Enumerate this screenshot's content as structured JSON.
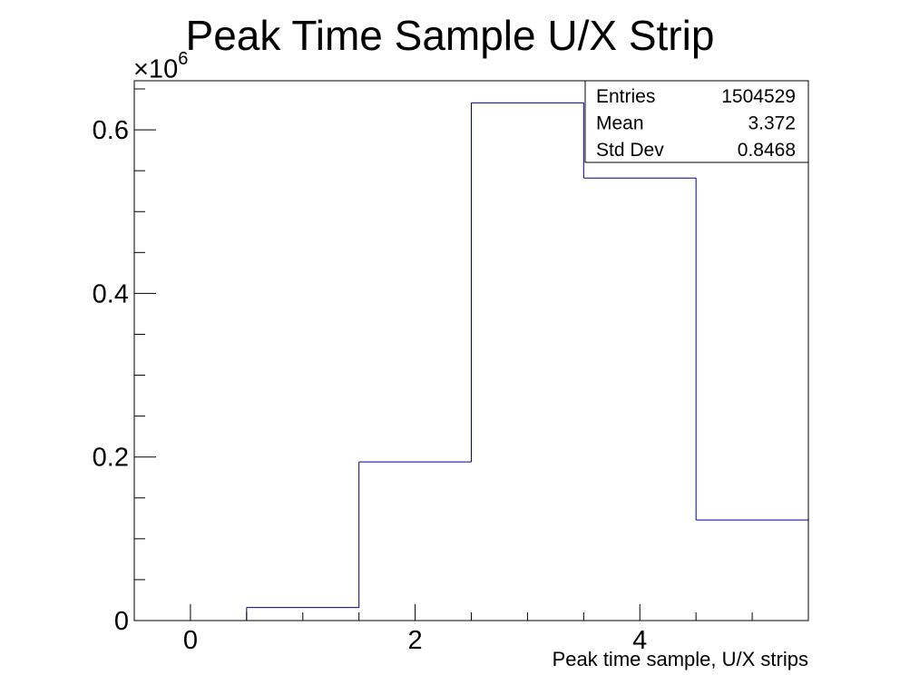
{
  "chart_data": {
    "type": "bar",
    "title": "Peak Time Sample U/X Strip",
    "xlabel": "Peak time sample, U/X strips",
    "ylabel": "",
    "y_multiplier": "×10",
    "y_multiplier_exponent": "6",
    "xlim": [
      -0.5,
      5.5
    ],
    "ylim": [
      0,
      0.66
    ],
    "x_ticks": [
      0,
      2,
      4
    ],
    "x_tick_labels": [
      "0",
      "2",
      "4"
    ],
    "y_ticks": [
      0,
      0.2,
      0.4,
      0.6
    ],
    "y_tick_labels": [
      "0",
      "0.2",
      "0.4",
      "0.6"
    ],
    "bin_edges": [
      -0.5,
      0.5,
      1.5,
      2.5,
      3.5,
      4.5,
      5.5
    ],
    "values": [
      0,
      0.016,
      0.194,
      0.633,
      0.541,
      0.123
    ],
    "line_color": "#00008b",
    "grid": false,
    "stats_box": {
      "position": "top-right",
      "rows": [
        {
          "label": "Entries",
          "value": "1504529"
        },
        {
          "label": "Mean",
          "value": "3.372"
        },
        {
          "label": "Std Dev",
          "value": "0.8468"
        }
      ]
    }
  }
}
